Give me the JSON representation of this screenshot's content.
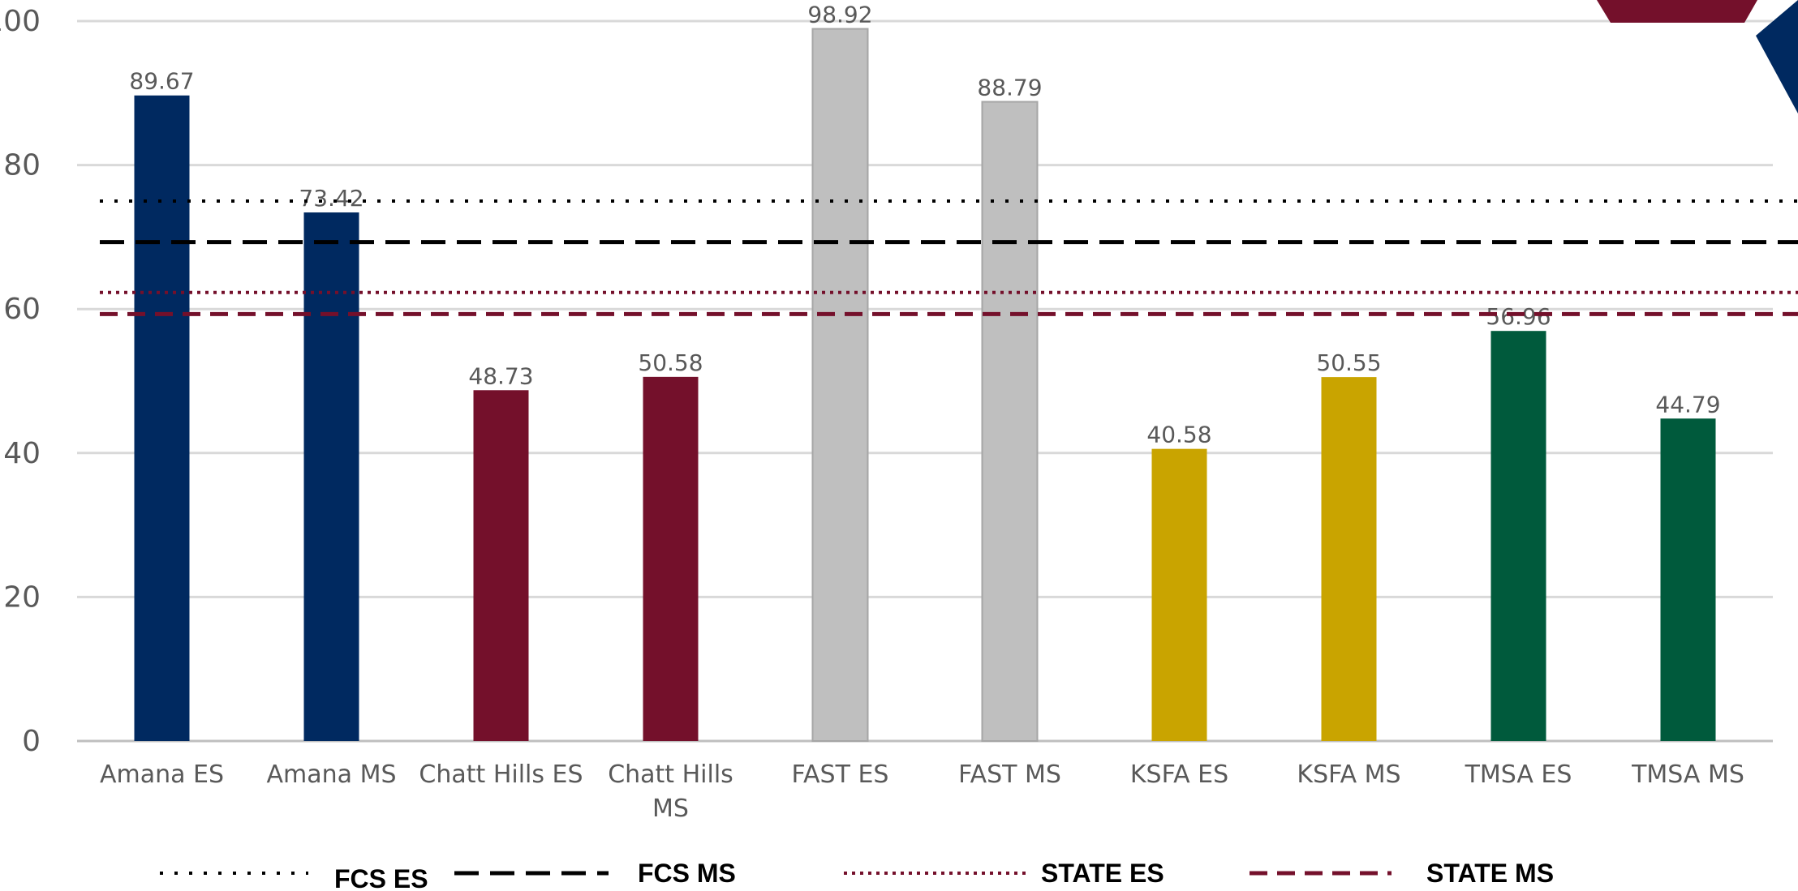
{
  "chart_data": {
    "type": "bar",
    "categories": [
      "Amana ES",
      "Amana MS",
      "Chatt Hills ES",
      "Chatt Hills MS",
      "FAST ES",
      "FAST MS",
      "KSFA ES",
      "KSFA MS",
      "TMSA ES",
      "TMSA MS"
    ],
    "category_lines": [
      [
        "Amana ES"
      ],
      [
        "Amana MS"
      ],
      [
        "Chatt Hills ES"
      ],
      [
        "Chatt Hills",
        "MS"
      ],
      [
        "FAST ES"
      ],
      [
        "FAST MS"
      ],
      [
        "KSFA ES"
      ],
      [
        "KSFA MS"
      ],
      [
        "TMSA ES"
      ],
      [
        "TMSA MS"
      ]
    ],
    "values": [
      89.67,
      73.42,
      48.73,
      50.58,
      98.92,
      88.79,
      40.58,
      50.55,
      56.96,
      44.79
    ],
    "value_labels": [
      "89.67",
      "73.42",
      "48.73",
      "50.58",
      "98.92",
      "88.79",
      "40.58",
      "50.55",
      "56.96",
      "44.79"
    ],
    "bar_colors": [
      "#002960",
      "#002960",
      "#74102b",
      "#74102b",
      "#bfbfbf",
      "#bfbfbf",
      "#c9a400",
      "#c9a400",
      "#005a3c",
      "#005a3c"
    ],
    "ylim": [
      0,
      100
    ],
    "yticks": [
      0,
      20,
      40,
      60,
      80,
      100
    ],
    "ytick_labels": [
      "0",
      "20",
      "40",
      "60",
      "80",
      "100"
    ],
    "grid": true,
    "reference_lines": [
      {
        "name": "FCS ES",
        "value": 75,
        "style": "dotted",
        "color": "#000000"
      },
      {
        "name": "FCS MS",
        "value": 69.3,
        "style": "dashed",
        "color": "#000000"
      },
      {
        "name": "STATE ES",
        "value": 62.3,
        "style": "dotted",
        "color": "#74102b"
      },
      {
        "name": "STATE MS",
        "value": 59.3,
        "style": "dashed",
        "color": "#74102b"
      }
    ],
    "legend_position": "bottom"
  },
  "decor": {
    "corner_maroon": "#74102b",
    "corner_navy": "#002960",
    "gridline_color": "#d9d9d9",
    "axis_color": "#bfbfbf"
  }
}
